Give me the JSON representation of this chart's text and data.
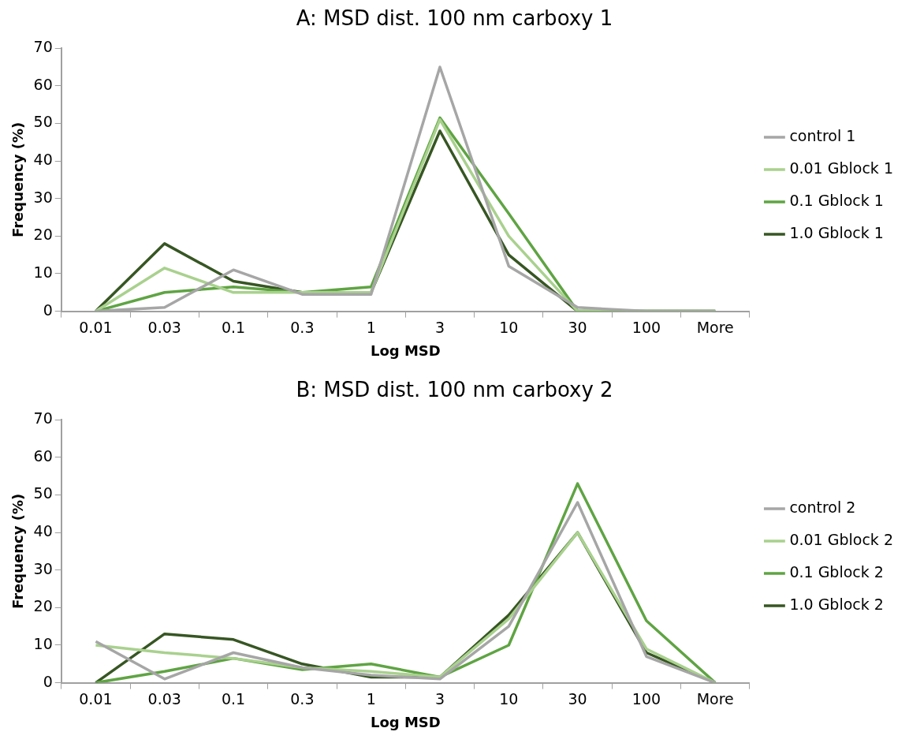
{
  "chart_data": [
    {
      "type": "line",
      "title": "A: MSD dist. 100 nm carboxy 1",
      "xlabel": "Log MSD",
      "ylabel": "Frequency (%)",
      "categories": [
        "0.01",
        "0.03",
        "0.1",
        "0.3",
        "1",
        "3",
        "10",
        "30",
        "100",
        "More"
      ],
      "series": [
        {
          "name": "control 1",
          "color": "#a6a6a6",
          "values": [
            0,
            1,
            11,
            4.5,
            4.5,
            65,
            12,
            1,
            0,
            0
          ]
        },
        {
          "name": "0.01 Gblock 1",
          "color": "#a9d18e",
          "values": [
            0,
            11.5,
            5,
            5,
            5,
            51,
            20,
            0,
            0,
            0
          ]
        },
        {
          "name": "0.1 Gblock 1",
          "color": "#5fa443",
          "values": [
            0,
            5,
            6.5,
            5,
            6.5,
            51.5,
            26,
            0,
            0,
            0
          ]
        },
        {
          "name": "1.0 Gblock 1",
          "color": "#375623",
          "values": [
            0,
            18,
            8,
            5,
            5,
            48,
            15,
            0,
            0,
            0
          ]
        }
      ],
      "ylim": [
        0,
        70
      ],
      "yticks": [
        0,
        10,
        20,
        30,
        40,
        50,
        60,
        70
      ],
      "grid": false,
      "legend": "right",
      "marker": "none"
    },
    {
      "type": "line",
      "title": "B: MSD dist. 100 nm carboxy 2",
      "xlabel": "Log MSD",
      "ylabel": "Frequency (%)",
      "categories": [
        "0.01",
        "0.03",
        "0.1",
        "0.3",
        "1",
        "3",
        "10",
        "30",
        "100",
        "More"
      ],
      "series": [
        {
          "name": "control 2",
          "color": "#a6a6a6",
          "values": [
            11,
            1,
            8,
            4,
            2,
            1,
            15,
            48,
            7,
            0
          ]
        },
        {
          "name": "0.01 Gblock 2",
          "color": "#a9d18e",
          "values": [
            10,
            8,
            6.5,
            4,
            3,
            1.5,
            17,
            40,
            9,
            0
          ]
        },
        {
          "name": "0.1 Gblock 2",
          "color": "#5fa443",
          "values": [
            0,
            3,
            6.5,
            3.5,
            5,
            1.5,
            10,
            53,
            16.5,
            0
          ]
        },
        {
          "name": "1.0 Gblock 2",
          "color": "#375623",
          "values": [
            0,
            13,
            11.5,
            5,
            1.5,
            1.5,
            18,
            40,
            8,
            0
          ]
        }
      ],
      "ylim": [
        0,
        70
      ],
      "yticks": [
        0,
        10,
        20,
        30,
        40,
        50,
        60,
        70
      ],
      "grid": false,
      "legend": "right",
      "marker": "none"
    }
  ]
}
